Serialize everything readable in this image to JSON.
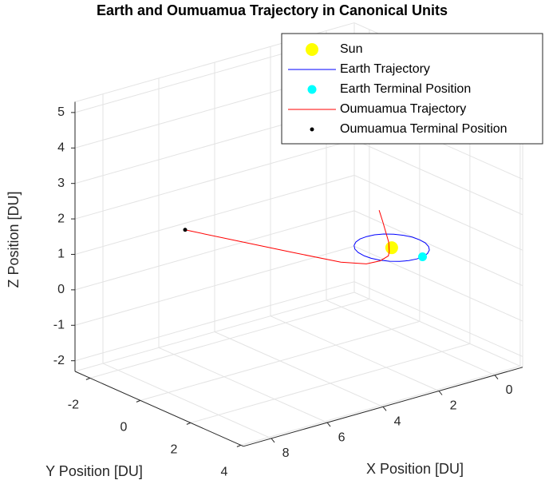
{
  "chart_data": {
    "type": "line3d",
    "title": "Earth and Oumuamua Trajectory in Canonical Units",
    "xlabel": "X Position [DU]",
    "ylabel": "Y Position [DU]",
    "zlabel": "Z Position [DU]",
    "xlim": [
      -1,
      9
    ],
    "ylim": [
      -2.6,
      4.1
    ],
    "zlim": [
      -2.3,
      5.3
    ],
    "xticks": [
      0,
      2,
      4,
      6,
      8
    ],
    "yticks": [
      -2,
      0,
      2,
      4
    ],
    "zticks": [
      -2,
      -1,
      0,
      1,
      2,
      3,
      4,
      5
    ],
    "grid": true,
    "legend_position": "northeast",
    "series": [
      {
        "name": "Sun",
        "type": "scatter",
        "color": "#ffff00",
        "x": [
          0
        ],
        "y": [
          0
        ],
        "z": [
          0
        ]
      },
      {
        "name": "Earth Trajectory",
        "type": "line",
        "color": "#0000ff",
        "x": [
          1,
          0.97,
          0.87,
          0.71,
          0.5,
          0.26,
          0,
          -0.26,
          -0.5,
          -0.71,
          -0.87,
          -0.97,
          -1,
          -0.97,
          -0.87,
          -0.71,
          -0.5,
          -0.26,
          0,
          0.26,
          0.5,
          0.71,
          0.87,
          0.97,
          1
        ],
        "y": [
          0,
          0.26,
          0.5,
          0.71,
          0.87,
          0.97,
          1,
          0.97,
          0.87,
          0.71,
          0.5,
          0.26,
          0,
          -0.26,
          -0.5,
          -0.71,
          -0.87,
          -0.97,
          -1,
          -0.97,
          -0.87,
          -0.71,
          -0.5,
          -0.26,
          0
        ],
        "z": [
          0,
          0,
          0,
          0,
          0,
          0,
          0,
          0,
          0,
          0,
          0,
          0,
          0,
          0,
          0,
          0,
          0,
          0,
          0,
          0,
          0,
          0,
          0,
          0,
          0
        ]
      },
      {
        "name": "Earth Terminal Position",
        "type": "scatter",
        "color": "#00ffff",
        "x": [
          -0.23
        ],
        "y": [
          0.97
        ],
        "z": [
          0
        ]
      },
      {
        "name": "Oumuamua Trajectory",
        "type": "line",
        "color": "#ff0000",
        "x": [
          0.0,
          0.05,
          0.15,
          0.25,
          0.3,
          0.55,
          1.0,
          2.0,
          4.0,
          6.0,
          8.0
        ],
        "y": [
          -0.5,
          -0.3,
          0.05,
          0.18,
          0.2,
          0.15,
          0.1,
          0.2,
          0.4,
          0.55,
          0.67
        ],
        "z": [
          0.9,
          0.65,
          0.2,
          0.0,
          -0.1,
          -0.2,
          -0.2,
          0.1,
          0.9,
          1.7,
          2.5
        ]
      },
      {
        "name": "Oumuamua Terminal Position",
        "type": "scatter",
        "color": "#000000",
        "x": [
          8.0
        ],
        "y": [
          0.67
        ],
        "z": [
          2.5
        ]
      }
    ]
  }
}
